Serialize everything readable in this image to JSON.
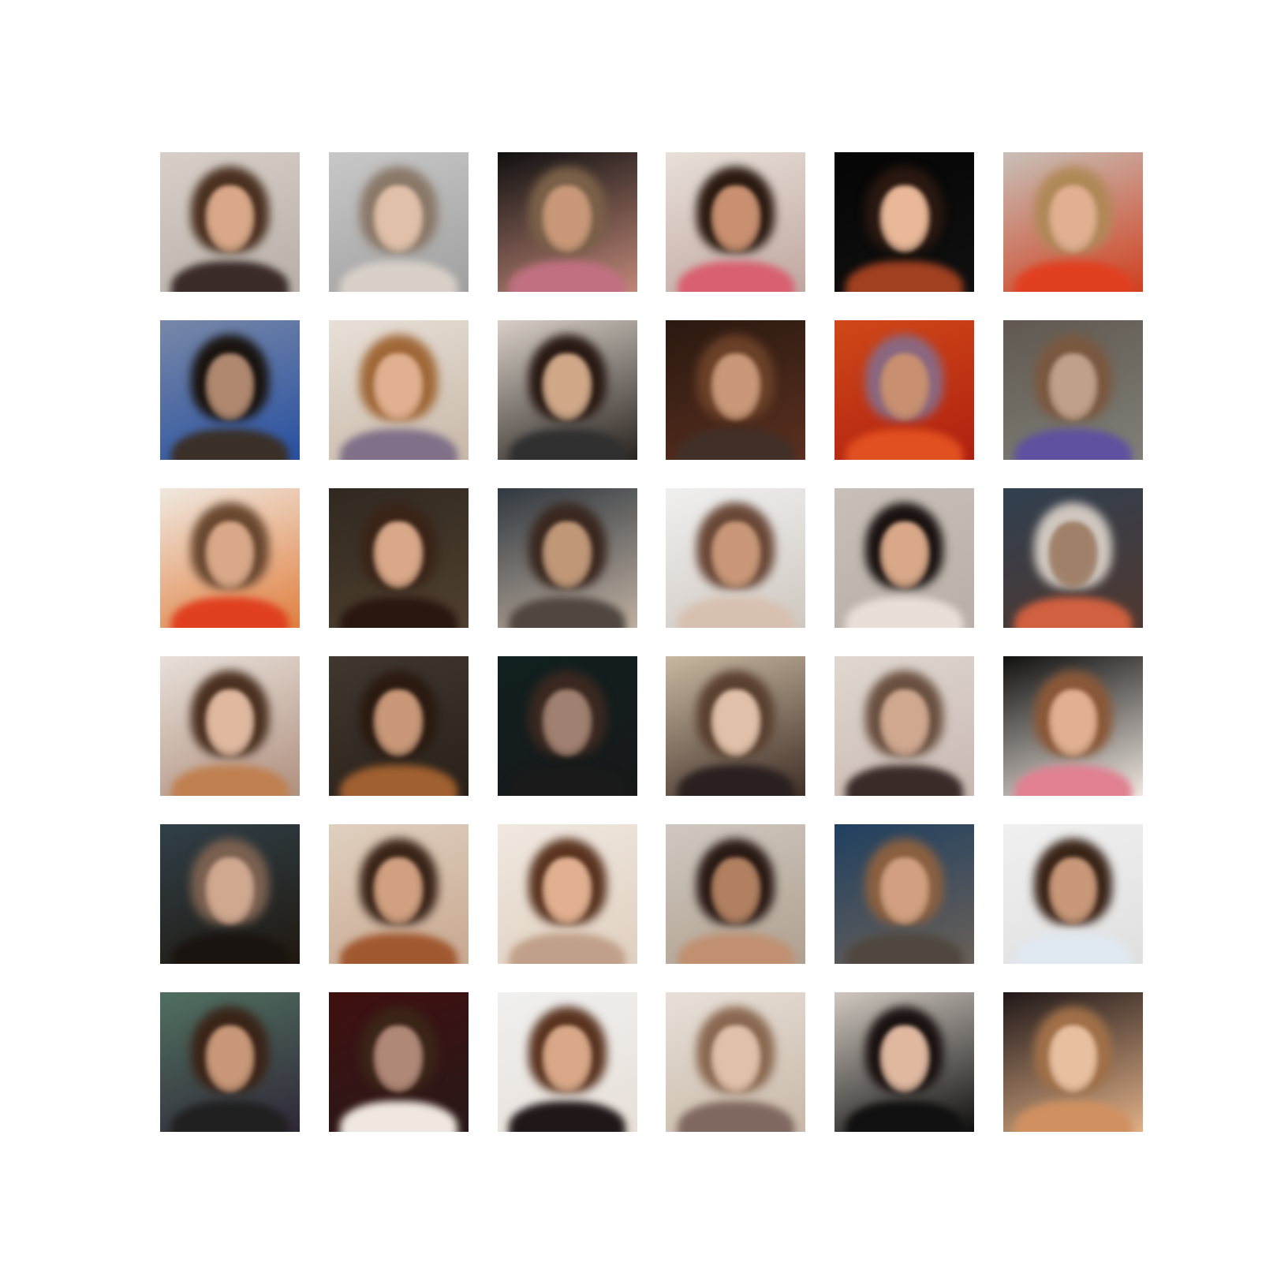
{
  "figure": {
    "grid": {
      "rows": 6,
      "cols": 6
    },
    "samples": [
      {
        "bg": [
          "#d8d0c8",
          "#b8b0a8"
        ],
        "hair": "#4a3020",
        "skin": "#d8a888",
        "cloth": "#3a2a28"
      },
      {
        "bg": [
          "#c8c8c8",
          "#a0a0a0"
        ],
        "hair": "#8a7868",
        "skin": "#e0c0a8",
        "cloth": "#d8d0c8"
      },
      {
        "bg": [
          "#101010",
          "#c08878"
        ],
        "hair": "#7a6048",
        "skin": "#c89878",
        "cloth": "#c07080"
      },
      {
        "bg": [
          "#e8e0d8",
          "#c0a8a0"
        ],
        "hair": "#2a1a10",
        "skin": "#c89070",
        "cloth": "#d86070"
      },
      {
        "bg": [
          "#050505",
          "#101010"
        ],
        "hair": "#2a1810",
        "skin": "#e8b898",
        "cloth": "#a04020"
      },
      {
        "bg": [
          "#c8c0b8",
          "#d04020"
        ],
        "hair": "#b08858",
        "skin": "#e0b090",
        "cloth": "#e04020"
      },
      {
        "bg": [
          "#7888a8",
          "#2850a0"
        ],
        "hair": "#1a1410",
        "skin": "#b08870",
        "cloth": "#3a3028"
      },
      {
        "bg": [
          "#e8e0d8",
          "#c8b8a8"
        ],
        "hair": "#a06838",
        "skin": "#e0b090",
        "cloth": "#807088"
      },
      {
        "bg": [
          "#d8d0c8",
          "#2a2420"
        ],
        "hair": "#2a1a14",
        "skin": "#d0a888",
        "cloth": "#303030"
      },
      {
        "bg": [
          "#2a1810",
          "#5a3020"
        ],
        "hair": "#6a4028",
        "skin": "#c89878",
        "cloth": "#403028"
      },
      {
        "bg": [
          "#d04818",
          "#b02010"
        ],
        "hair": "#8a6880",
        "skin": "#c89070",
        "cloth": "#e05020"
      },
      {
        "bg": [
          "#605850",
          "#808078"
        ],
        "hair": "#7a5840",
        "skin": "#c0a088",
        "cloth": "#6050a0"
      },
      {
        "bg": [
          "#f0e8e0",
          "#e08040"
        ],
        "hair": "#6a4830",
        "skin": "#d8a888",
        "cloth": "#e04020"
      },
      {
        "bg": [
          "#302820",
          "#504030"
        ],
        "hair": "#3a2418",
        "skin": "#d8a888",
        "cloth": "#2a1810"
      },
      {
        "bg": [
          "#303840",
          "#c0b0a0"
        ],
        "hair": "#3a2820",
        "skin": "#c09878",
        "cloth": "#504840"
      },
      {
        "bg": [
          "#f0f0f0",
          "#d0c8c0"
        ],
        "hair": "#6a4838",
        "skin": "#c89878",
        "cloth": "#d8c0b0"
      },
      {
        "bg": [
          "#c8c0b8",
          "#b8b0a8"
        ],
        "hair": "#1a1210",
        "skin": "#d8a888",
        "cloth": "#e8e0d8"
      },
      {
        "bg": [
          "#304050",
          "#503830"
        ],
        "hair": "#d0c8c0",
        "skin": "#a08068",
        "cloth": "#d06040"
      },
      {
        "bg": [
          "#e8e0d8",
          "#b09080"
        ],
        "hair": "#4a3020",
        "skin": "#e0b8a0",
        "cloth": "#c08050"
      },
      {
        "bg": [
          "#403830",
          "#2a2018"
        ],
        "hair": "#2a1a10",
        "skin": "#c89878",
        "cloth": "#a06030"
      },
      {
        "bg": [
          "#102020",
          "#181818"
        ],
        "hair": "#3a2820",
        "skin": "#a08070",
        "cloth": "#1a1a1a"
      },
      {
        "bg": [
          "#c8b8a0",
          "#403028"
        ],
        "hair": "#5a4030",
        "skin": "#e0c0a8",
        "cloth": "#2a2020"
      },
      {
        "bg": [
          "#e0d8d0",
          "#c8b8b0"
        ],
        "hair": "#6a5040",
        "skin": "#d0a890",
        "cloth": "#3a2a28"
      },
      {
        "bg": [
          "#101010",
          "#f0e8e0"
        ],
        "hair": "#8a5838",
        "skin": "#e0b090",
        "cloth": "#e08090"
      },
      {
        "bg": [
          "#304048",
          "#201810"
        ],
        "hair": "#7a6050",
        "skin": "#d0a890",
        "cloth": "#1a1410"
      },
      {
        "bg": [
          "#e0d0c0",
          "#c8a890"
        ],
        "hair": "#3a2418",
        "skin": "#d0a080",
        "cloth": "#a05830"
      },
      {
        "bg": [
          "#f0e8e0",
          "#e0d0c0"
        ],
        "hair": "#5a3420",
        "skin": "#e0b090",
        "cloth": "#c0a088"
      },
      {
        "bg": [
          "#d0c8c0",
          "#b0a090"
        ],
        "hair": "#2a1a14",
        "skin": "#b08060",
        "cloth": "#c09070"
      },
      {
        "bg": [
          "#204060",
          "#6a6058"
        ],
        "hair": "#8a6040",
        "skin": "#d0a080",
        "cloth": "#504840"
      },
      {
        "bg": [
          "#f0f0f0",
          "#e0e0e0"
        ],
        "hair": "#3a2418",
        "skin": "#c89878",
        "cloth": "#e0e8f0"
      },
      {
        "bg": [
          "#507060",
          "#302838"
        ],
        "hair": "#3a2418",
        "skin": "#c89878",
        "cloth": "#202020"
      },
      {
        "bg": [
          "#401010",
          "#281818"
        ],
        "hair": "#3a2418",
        "skin": "#b08878",
        "cloth": "#f0e8e0"
      },
      {
        "bg": [
          "#f0f0f0",
          "#e8e0d8"
        ],
        "hair": "#5a3420",
        "skin": "#d8a888",
        "cloth": "#201818"
      },
      {
        "bg": [
          "#e8e0d8",
          "#c8b8a8"
        ],
        "hair": "#8a6850",
        "skin": "#e0c0a8",
        "cloth": "#806860"
      },
      {
        "bg": [
          "#d0c8c0",
          "#101010"
        ],
        "hair": "#1a1210",
        "skin": "#e0b8a0",
        "cloth": "#101010"
      },
      {
        "bg": [
          "#201818",
          "#e0b088"
        ],
        "hair": "#a07048",
        "skin": "#e8c0a0",
        "cloth": "#d09060"
      }
    ]
  }
}
